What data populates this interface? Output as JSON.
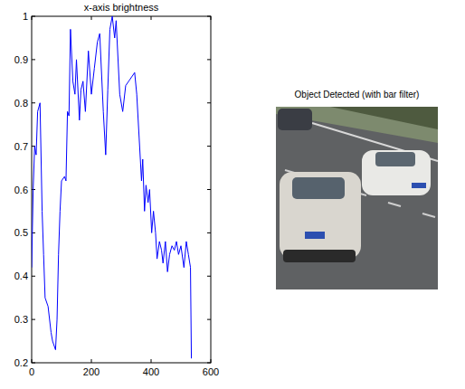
{
  "chart_data": {
    "type": "line",
    "title": "x-axis brightness",
    "color": "#0000ff",
    "x": [
      0,
      5,
      10,
      15,
      20,
      28,
      35,
      40,
      45,
      55,
      65,
      70,
      80,
      85,
      90,
      95,
      100,
      110,
      115,
      120,
      125,
      130,
      138,
      145,
      150,
      160,
      165,
      172,
      180,
      190,
      200,
      210,
      220,
      228,
      240,
      248,
      255,
      262,
      270,
      278,
      283,
      295,
      305,
      315,
      325,
      335,
      345,
      352,
      360,
      368,
      372,
      378,
      383,
      390,
      395,
      402,
      408,
      415,
      420,
      428,
      435,
      440,
      448,
      455,
      462,
      470,
      478,
      485,
      492,
      500,
      510,
      518,
      525,
      532,
      535
    ],
    "values": [
      0.42,
      0.6,
      0.7,
      0.68,
      0.78,
      0.8,
      0.55,
      0.45,
      0.35,
      0.33,
      0.27,
      0.25,
      0.23,
      0.3,
      0.45,
      0.55,
      0.62,
      0.63,
      0.62,
      0.78,
      0.77,
      0.97,
      0.85,
      0.82,
      0.9,
      0.76,
      0.83,
      0.85,
      0.78,
      0.92,
      0.82,
      0.88,
      0.94,
      0.96,
      0.78,
      0.68,
      0.83,
      0.97,
      1.0,
      0.95,
      0.99,
      0.82,
      0.78,
      0.84,
      0.85,
      0.86,
      0.87,
      0.82,
      0.72,
      0.62,
      0.67,
      0.55,
      0.61,
      0.57,
      0.6,
      0.5,
      0.55,
      0.5,
      0.44,
      0.48,
      0.46,
      0.43,
      0.48,
      0.41,
      0.45,
      0.47,
      0.46,
      0.48,
      0.45,
      0.47,
      0.42,
      0.48,
      0.45,
      0.42,
      0.21
    ],
    "xlim": [
      0,
      600
    ],
    "xticks": [
      0,
      200,
      400,
      600
    ],
    "ylim": [
      0.2,
      1
    ],
    "yticks": [
      0.2,
      0.3,
      0.4,
      0.5,
      0.6,
      0.7,
      0.8,
      0.9,
      1
    ]
  },
  "image": {
    "title": "Object Detected (with bar filter)"
  }
}
